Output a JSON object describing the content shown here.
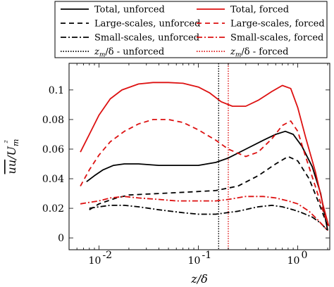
{
  "chart_data": {
    "type": "line",
    "xlabel": "z/δ",
    "ylabel": "uu/U_m²",
    "xscale": "log",
    "xlim": [
      0.005,
      2.1
    ],
    "ylim": [
      -0.008,
      0.118
    ],
    "x_ticks": [
      {
        "value": 0.01,
        "label": "10",
        "exp": "-2"
      },
      {
        "value": 0.1,
        "label": "10",
        "exp": "-1"
      },
      {
        "value": 1,
        "label": "10",
        "exp": "0"
      }
    ],
    "y_ticks": [
      {
        "value": 0,
        "label": "0"
      },
      {
        "value": 0.02,
        "label": "0.02"
      },
      {
        "value": 0.04,
        "label": "0.04"
      },
      {
        "value": 0.06,
        "label": "0.06"
      },
      {
        "value": 0.08,
        "label": "0.08"
      },
      {
        "value": 0.1,
        "label": "0.1"
      }
    ],
    "legend": {
      "placement": "top, outside",
      "entries": [
        {
          "label": "Total, unforced",
          "color": "#000000",
          "style": "solid"
        },
        {
          "label": "Total, forced",
          "color": "#dd1111",
          "style": "solid"
        },
        {
          "label": "Large-scales, unforced",
          "color": "#000000",
          "style": "dashed"
        },
        {
          "label": "Large-scales, forced",
          "color": "#dd1111",
          "style": "dashed"
        },
        {
          "label": "Small-scales, unforced",
          "color": "#000000",
          "style": "dashdot"
        },
        {
          "label": "Small-scales, forced",
          "color": "#dd1111",
          "style": "dashdot"
        },
        {
          "label": "z_m/δ - unforced",
          "color": "#000000",
          "style": "dotted"
        },
        {
          "label": "z_m/δ - forced",
          "color": "#dd1111",
          "style": "dotted"
        }
      ]
    },
    "series": [
      {
        "name": "Total, unforced",
        "color": "#000000",
        "style": "solid",
        "x": [
          0.0075,
          0.009,
          0.011,
          0.014,
          0.018,
          0.025,
          0.04,
          0.06,
          0.1,
          0.15,
          0.2,
          0.3,
          0.45,
          0.6,
          0.75,
          0.9,
          1.1,
          1.4,
          1.7,
          2.0
        ],
        "y": [
          0.038,
          0.042,
          0.046,
          0.049,
          0.05,
          0.05,
          0.049,
          0.049,
          0.049,
          0.051,
          0.054,
          0.06,
          0.066,
          0.07,
          0.072,
          0.07,
          0.062,
          0.048,
          0.03,
          0.005
        ]
      },
      {
        "name": "Total, forced",
        "color": "#dd1111",
        "style": "solid",
        "x": [
          0.0065,
          0.008,
          0.01,
          0.013,
          0.017,
          0.025,
          0.035,
          0.05,
          0.07,
          0.1,
          0.13,
          0.17,
          0.22,
          0.3,
          0.4,
          0.55,
          0.7,
          0.85,
          1.0,
          1.2,
          1.5,
          1.8,
          2.05
        ],
        "y": [
          0.058,
          0.07,
          0.083,
          0.094,
          0.1,
          0.104,
          0.105,
          0.105,
          0.1045,
          0.102,
          0.098,
          0.092,
          0.089,
          0.089,
          0.093,
          0.099,
          0.103,
          0.101,
          0.088,
          0.068,
          0.045,
          0.022,
          0.008
        ]
      },
      {
        "name": "Large-scales, unforced",
        "color": "#000000",
        "style": "dashed",
        "x": [
          0.008,
          0.01,
          0.015,
          0.02,
          0.04,
          0.08,
          0.15,
          0.25,
          0.4,
          0.6,
          0.8,
          1.0,
          1.3,
          1.6,
          2.0
        ],
        "y": [
          0.019,
          0.023,
          0.027,
          0.029,
          0.03,
          0.031,
          0.032,
          0.035,
          0.042,
          0.05,
          0.055,
          0.052,
          0.04,
          0.025,
          0.008
        ]
      },
      {
        "name": "Large-scales, forced",
        "color": "#dd1111",
        "style": "dashed",
        "x": [
          0.0065,
          0.008,
          0.01,
          0.013,
          0.018,
          0.025,
          0.035,
          0.05,
          0.07,
          0.1,
          0.15,
          0.2,
          0.3,
          0.4,
          0.55,
          0.7,
          0.85,
          1.0,
          1.2,
          1.5,
          1.8,
          2.05
        ],
        "y": [
          0.035,
          0.046,
          0.056,
          0.065,
          0.072,
          0.077,
          0.08,
          0.08,
          0.078,
          0.073,
          0.066,
          0.06,
          0.055,
          0.058,
          0.067,
          0.076,
          0.079,
          0.072,
          0.055,
          0.035,
          0.018,
          0.008
        ]
      },
      {
        "name": "Small-scales, unforced",
        "color": "#000000",
        "style": "dashdot",
        "x": [
          0.008,
          0.01,
          0.013,
          0.018,
          0.025,
          0.04,
          0.07,
          0.1,
          0.15,
          0.25,
          0.4,
          0.55,
          0.7,
          0.9,
          1.1,
          1.4,
          1.7,
          2.0
        ],
        "y": [
          0.02,
          0.021,
          0.022,
          0.022,
          0.021,
          0.019,
          0.017,
          0.016,
          0.016,
          0.018,
          0.021,
          0.022,
          0.021,
          0.019,
          0.017,
          0.014,
          0.01,
          0.005
        ]
      },
      {
        "name": "Small-scales, forced",
        "color": "#dd1111",
        "style": "dashdot",
        "x": [
          0.0065,
          0.008,
          0.01,
          0.013,
          0.018,
          0.025,
          0.04,
          0.06,
          0.1,
          0.15,
          0.2,
          0.3,
          0.45,
          0.6,
          0.8,
          1.0,
          1.3,
          1.6,
          2.0
        ],
        "y": [
          0.023,
          0.024,
          0.025,
          0.027,
          0.028,
          0.027,
          0.026,
          0.025,
          0.025,
          0.025,
          0.026,
          0.028,
          0.028,
          0.027,
          0.025,
          0.023,
          0.018,
          0.012,
          0.005
        ]
      }
    ],
    "vlines": [
      {
        "name": "z_m/δ - unforced",
        "x": 0.16,
        "color": "#000000",
        "style": "dotted"
      },
      {
        "name": "z_m/δ - forced",
        "x": 0.2,
        "color": "#dd1111",
        "style": "dotted"
      }
    ]
  }
}
